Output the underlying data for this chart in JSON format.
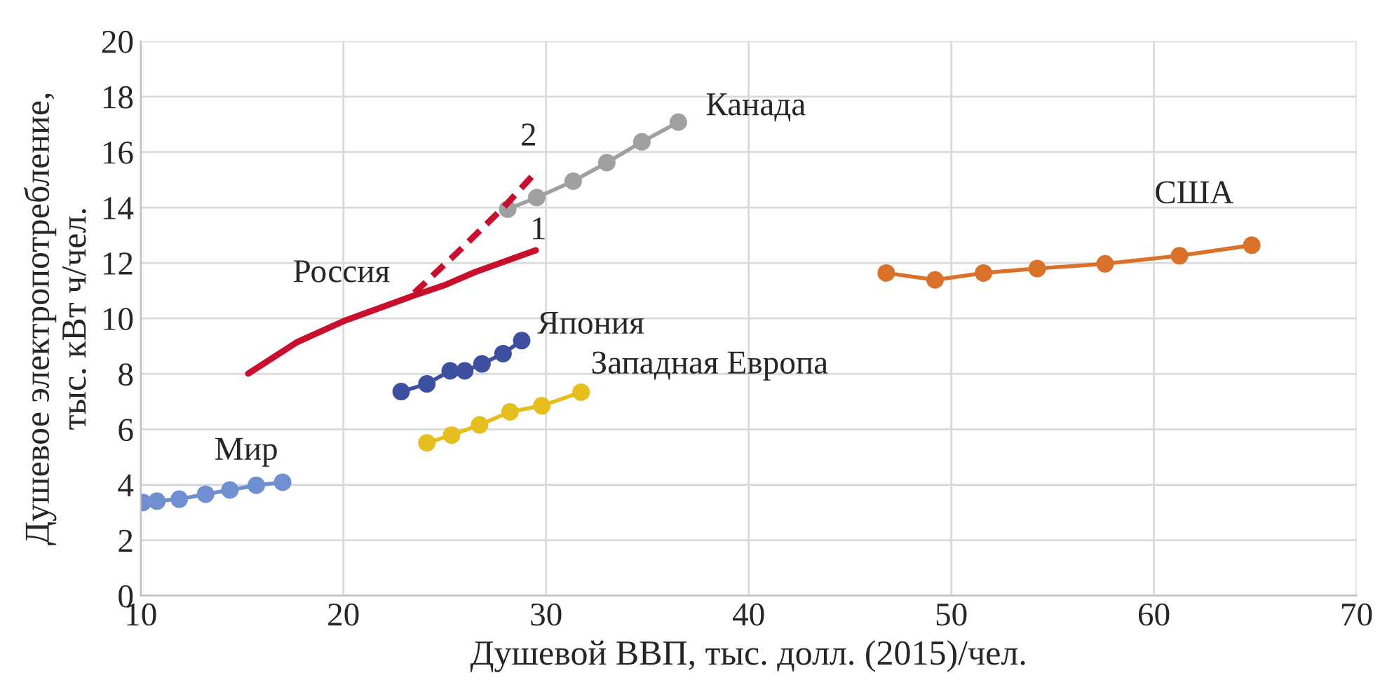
{
  "chart_data": {
    "type": "line",
    "xlabel": "Душевой ВВП, тыс. долл. (2015)/чел.",
    "ylabel": "Душевое электропотребление,\nтыс. кВт ч/чел.",
    "xlim": [
      10,
      70
    ],
    "ylim": [
      0,
      20
    ],
    "xticks": [
      10,
      20,
      30,
      40,
      50,
      60,
      70
    ],
    "yticks": [
      0,
      2,
      4,
      6,
      8,
      10,
      12,
      14,
      16,
      18,
      20
    ],
    "grid": true,
    "marker": "circle",
    "line_style": "solid",
    "series": [
      {
        "name": "Мир",
        "color": "#6f8fd0",
        "x": [
          10.1,
          10.8,
          11.9,
          13.2,
          14.4,
          15.7,
          17.0
        ],
        "values": [
          3.36,
          3.41,
          3.48,
          3.66,
          3.81,
          3.98,
          4.09
        ]
      },
      {
        "name": "Япония",
        "color": "#3f4fa0",
        "x": [
          22.85,
          24.12,
          25.27,
          25.99,
          26.84,
          27.88,
          28.8
        ],
        "values": [
          7.36,
          7.64,
          8.11,
          8.11,
          8.36,
          8.73,
          9.2
        ]
      },
      {
        "name": "Западная Европа",
        "color": "#e6bf1e",
        "x": [
          24.12,
          25.34,
          26.72,
          28.22,
          29.79,
          31.73
        ],
        "values": [
          5.51,
          5.79,
          6.16,
          6.63,
          6.85,
          7.34
        ]
      },
      {
        "name": "Канада",
        "color": "#a0a0a0",
        "x": [
          28.11,
          29.54,
          31.34,
          33.0,
          34.73,
          36.53
        ],
        "values": [
          13.94,
          14.36,
          14.95,
          15.62,
          16.37,
          17.08
        ]
      },
      {
        "name": "США",
        "color": "#d9712a",
        "x": [
          46.79,
          49.2,
          51.59,
          54.24,
          57.59,
          61.26,
          64.83
        ],
        "values": [
          11.64,
          11.39,
          11.64,
          11.8,
          11.97,
          12.26,
          12.64
        ]
      },
      {
        "name": "1",
        "color": "#c8102e",
        "marker": "none",
        "x": [
          15.3,
          17.73,
          20.0,
          23.5,
          25.0,
          26.5,
          29.5
        ],
        "values": [
          8.01,
          9.15,
          9.9,
          10.83,
          11.2,
          11.67,
          12.46
        ]
      },
      {
        "name": "2",
        "color": "#c8102e",
        "marker": "none",
        "line_style": "dashed",
        "x": [
          23.5,
          25.8,
          27.9,
          29.5
        ],
        "values": [
          10.92,
          12.5,
          14.0,
          15.28
        ]
      }
    ],
    "annotations": [
      "Россия"
    ]
  }
}
